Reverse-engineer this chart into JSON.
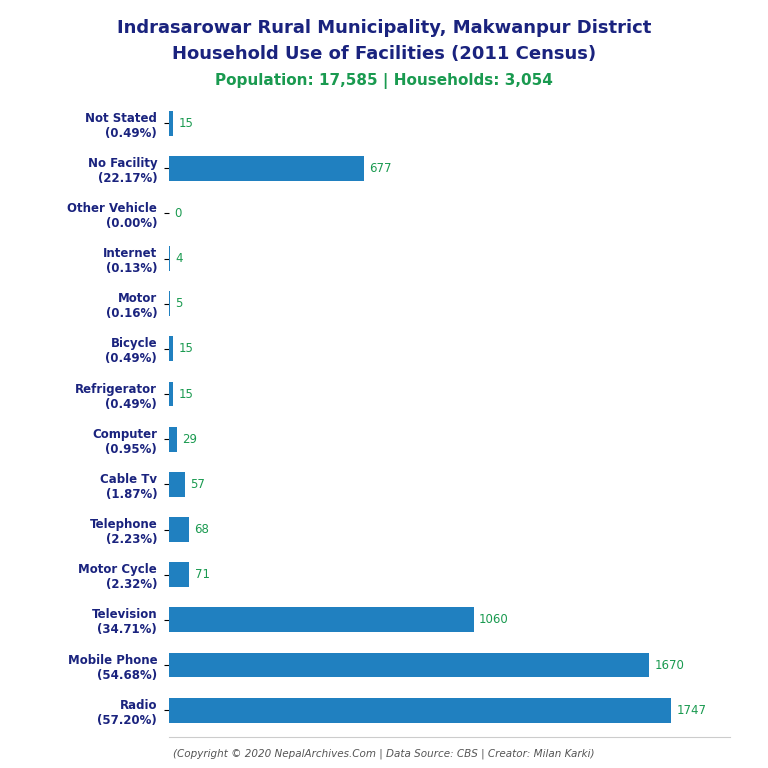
{
  "title_line1": "Indrasarowar Rural Municipality, Makwanpur District",
  "title_line2": "Household Use of Facilities (2011 Census)",
  "subtitle": "Population: 17,585 | Households: 3,054",
  "categories": [
    "Radio\n(57.20%)",
    "Mobile Phone\n(54.68%)",
    "Television\n(34.71%)",
    "Motor Cycle\n(2.32%)",
    "Telephone\n(2.23%)",
    "Cable Tv\n(1.87%)",
    "Computer\n(0.95%)",
    "Refrigerator\n(0.49%)",
    "Bicycle\n(0.49%)",
    "Motor\n(0.16%)",
    "Internet\n(0.13%)",
    "Other Vehicle\n(0.00%)",
    "No Facility\n(22.17%)",
    "Not Stated\n(0.49%)"
  ],
  "values": [
    1747,
    1670,
    1060,
    71,
    68,
    57,
    29,
    15,
    15,
    5,
    4,
    0,
    677,
    15
  ],
  "bar_color": "#2080C0",
  "value_color": "#1a9a50",
  "title_color": "#1a237e",
  "subtitle_color": "#1a9a50",
  "footer_color": "#555555",
  "footer_text": "(Copyright © 2020 NepalArchives.Com | Data Source: CBS | Creator: Milan Karki)",
  "background_color": "#ffffff",
  "xlim": [
    0,
    1950
  ],
  "title_fontsize": 13,
  "subtitle_fontsize": 11,
  "label_fontsize": 8.5,
  "value_fontsize": 8.5,
  "footer_fontsize": 7.5
}
